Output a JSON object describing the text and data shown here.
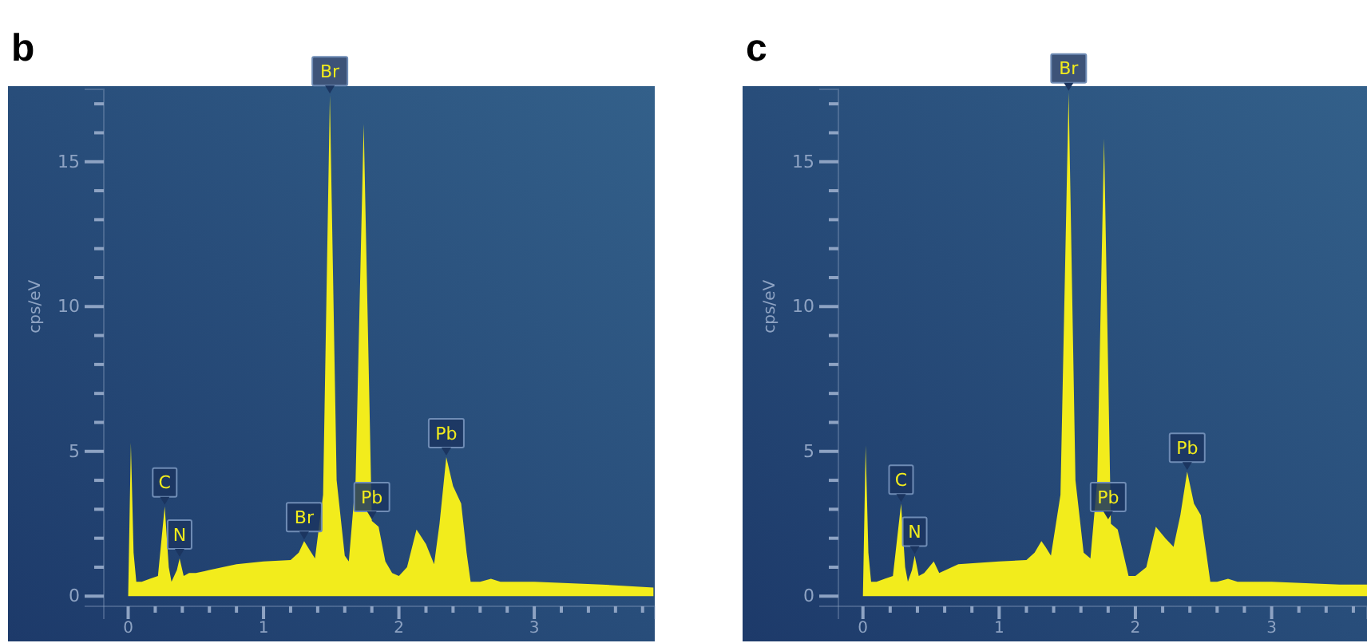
{
  "chart_data": [
    {
      "type": "area",
      "title": "b",
      "ylabel": "cps/eV",
      "color": "#f2ec1c",
      "x": [
        0,
        0.02,
        0.04,
        0.06,
        0.1,
        0.16,
        0.22,
        0.27,
        0.3,
        0.32,
        0.36,
        0.38,
        0.41,
        0.45,
        0.5,
        0.6,
        0.8,
        1.0,
        1.2,
        1.26,
        1.3,
        1.34,
        1.38,
        1.44,
        1.49,
        1.54,
        1.6,
        1.63,
        1.68,
        1.74,
        1.8,
        1.85,
        1.9,
        1.95,
        2.0,
        2.06,
        2.13,
        2.2,
        2.26,
        2.3,
        2.35,
        2.4,
        2.46,
        2.5,
        2.53,
        2.6,
        2.68,
        2.75,
        3.0,
        3.5,
        3.88
      ],
      "values": [
        0,
        5.3,
        1.5,
        0.5,
        0.5,
        0.6,
        0.7,
        3.1,
        1.0,
        0.5,
        0.9,
        1.3,
        0.7,
        0.8,
        0.8,
        0.9,
        1.1,
        1.2,
        1.25,
        1.5,
        1.9,
        1.6,
        1.3,
        3.5,
        17.3,
        4,
        1.4,
        1.2,
        4,
        16.3,
        2.6,
        2.4,
        1.2,
        0.8,
        0.7,
        1.0,
        2.3,
        1.8,
        1.1,
        2.5,
        4.8,
        3.8,
        3.2,
        1.5,
        0.5,
        0.5,
        0.6,
        0.5,
        0.5,
        0.4,
        0.3
      ],
      "xlim": [
        -0.18,
        3.89
      ],
      "ylim": [
        -0.35,
        17.5
      ],
      "xticks": [
        0,
        {
          "value": 0.2,
          "label": null
        },
        {
          "value": 0.4,
          "label": null
        },
        {
          "value": 0.6,
          "label": null
        },
        {
          "value": 0.8,
          "label": null
        },
        1,
        {
          "value": 1.2,
          "label": null
        },
        {
          "value": 1.4,
          "label": null
        },
        {
          "value": 1.6,
          "label": null
        },
        {
          "value": 1.8,
          "label": null
        },
        2,
        {
          "value": 2.2,
          "label": null
        },
        {
          "value": 2.4,
          "label": null
        },
        {
          "value": 2.6,
          "label": null
        },
        {
          "value": 2.8,
          "label": null
        },
        3,
        {
          "value": 3.2,
          "label": null
        },
        {
          "value": 3.4,
          "label": null
        },
        {
          "value": 3.6,
          "label": null
        },
        {
          "value": 3.8,
          "label": null
        }
      ],
      "yticks": [
        0,
        {
          "value": 1,
          "label": null
        },
        {
          "value": 2,
          "label": null
        },
        {
          "value": 3,
          "label": null
        },
        {
          "value": 4,
          "label": null
        },
        5,
        {
          "value": 6,
          "label": null
        },
        {
          "value": 7,
          "label": null
        },
        {
          "value": 8,
          "label": null
        },
        {
          "value": 9,
          "label": null
        },
        10,
        {
          "value": 11,
          "label": null
        },
        {
          "value": 12,
          "label": null
        },
        {
          "value": 13,
          "label": null
        },
        {
          "value": 14,
          "label": null
        },
        15,
        {
          "value": 16,
          "label": null
        },
        {
          "value": 17,
          "label": null
        }
      ],
      "annotations": [
        {
          "text": "C",
          "x": 0.27,
          "y": 3.1
        },
        {
          "text": "N",
          "x": 0.38,
          "y": 1.3
        },
        {
          "text": "Br",
          "x": 1.3,
          "y": 1.9
        },
        {
          "text": "Br",
          "x": 1.49,
          "y": 17.3
        },
        {
          "text": "Pb",
          "x": 1.8,
          "y": 2.6
        },
        {
          "text": "Pb",
          "x": 2.35,
          "y": 4.8
        }
      ]
    },
    {
      "type": "area",
      "title": "c",
      "ylabel": "cps/eV",
      "color": "#f2ec1c",
      "x": [
        0,
        0.02,
        0.04,
        0.06,
        0.1,
        0.16,
        0.22,
        0.28,
        0.31,
        0.33,
        0.36,
        0.38,
        0.41,
        0.45,
        0.52,
        0.56,
        0.7,
        1.0,
        1.2,
        1.26,
        1.31,
        1.34,
        1.38,
        1.45,
        1.51,
        1.56,
        1.62,
        1.67,
        1.72,
        1.77,
        1.82,
        1.87,
        1.95,
        2.0,
        2.08,
        2.15,
        2.22,
        2.28,
        2.33,
        2.38,
        2.43,
        2.48,
        2.52,
        2.55,
        2.6,
        2.68,
        2.75,
        3.0,
        3.5,
        3.7
      ],
      "values": [
        0,
        5.2,
        1.5,
        0.5,
        0.5,
        0.6,
        0.7,
        3.2,
        1.0,
        0.5,
        0.9,
        1.4,
        0.7,
        0.8,
        1.2,
        0.8,
        1.1,
        1.2,
        1.25,
        1.5,
        1.9,
        1.7,
        1.4,
        3.5,
        17.4,
        4,
        1.5,
        1.3,
        4,
        15.8,
        2.5,
        2.3,
        0.7,
        0.7,
        1.0,
        2.4,
        2.0,
        1.7,
        2.8,
        4.3,
        3.2,
        2.8,
        1.5,
        0.5,
        0.5,
        0.6,
        0.5,
        0.5,
        0.4,
        0.4
      ],
      "xlim": [
        -0.18,
        3.7
      ],
      "ylim": [
        -0.35,
        17.5
      ],
      "xticks": [
        0,
        {
          "value": 0.2,
          "label": null
        },
        {
          "value": 0.4,
          "label": null
        },
        {
          "value": 0.6,
          "label": null
        },
        {
          "value": 0.8,
          "label": null
        },
        1,
        {
          "value": 1.2,
          "label": null
        },
        {
          "value": 1.4,
          "label": null
        },
        {
          "value": 1.6,
          "label": null
        },
        {
          "value": 1.8,
          "label": null
        },
        2,
        {
          "value": 2.2,
          "label": null
        },
        {
          "value": 2.4,
          "label": null
        },
        {
          "value": 2.6,
          "label": null
        },
        {
          "value": 2.8,
          "label": null
        },
        3,
        {
          "value": 3.2,
          "label": null
        },
        {
          "value": 3.4,
          "label": null
        },
        {
          "value": 3.6,
          "label": null
        }
      ],
      "yticks": [
        0,
        {
          "value": 1,
          "label": null
        },
        {
          "value": 2,
          "label": null
        },
        {
          "value": 3,
          "label": null
        },
        {
          "value": 4,
          "label": null
        },
        5,
        {
          "value": 6,
          "label": null
        },
        {
          "value": 7,
          "label": null
        },
        {
          "value": 8,
          "label": null
        },
        {
          "value": 9,
          "label": null
        },
        10,
        {
          "value": 11,
          "label": null
        },
        {
          "value": 12,
          "label": null
        },
        {
          "value": 13,
          "label": null
        },
        {
          "value": 14,
          "label": null
        },
        15,
        {
          "value": 16,
          "label": null
        },
        {
          "value": 17,
          "label": null
        }
      ],
      "annotations": [
        {
          "text": "C",
          "x": 0.28,
          "y": 3.2
        },
        {
          "text": "N",
          "x": 0.38,
          "y": 1.4
        },
        {
          "text": "Br",
          "x": 1.51,
          "y": 17.4
        },
        {
          "text": "Pb",
          "x": 1.8,
          "y": 2.6
        },
        {
          "text": "Pb",
          "x": 2.38,
          "y": 4.3
        }
      ]
    }
  ]
}
